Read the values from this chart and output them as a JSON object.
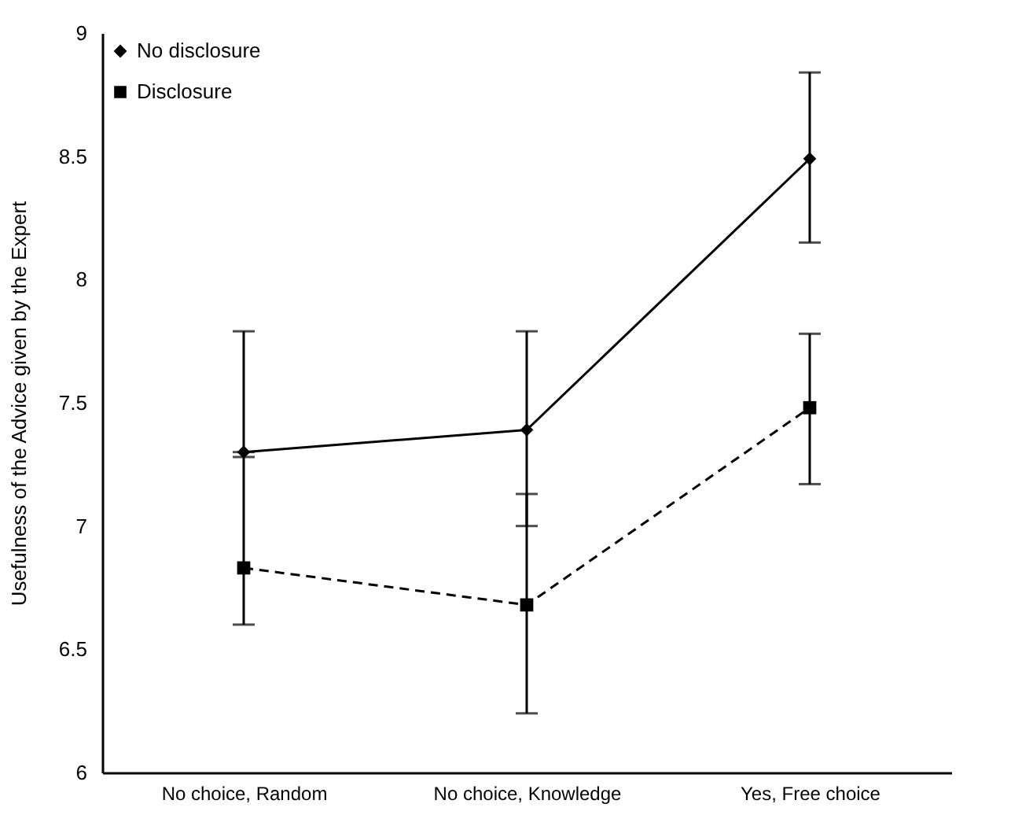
{
  "chart_data": {
    "type": "line",
    "ylabel": "Usefulness of the Advice given by the Expert",
    "categories": [
      "No choice, Random",
      "No choice, Knowledge",
      "Yes, Free choice"
    ],
    "ylim": [
      6,
      9
    ],
    "yticks": [
      {
        "value": 6,
        "label": "6"
      },
      6.5,
      {
        "value": 7,
        "label": "7"
      },
      7.5,
      {
        "value": 8,
        "label": "8"
      },
      8.5,
      {
        "value": 9,
        "label": "9"
      }
    ],
    "grid": false,
    "legend": "top left",
    "series": [
      {
        "name": "No disclosure",
        "color": "#000000",
        "marker": "diamond",
        "line_style": "solid",
        "values": [
          7.3,
          7.39,
          8.49
        ],
        "errors": [
          [
            7.3,
            7.79
          ],
          [
            7.0,
            7.79
          ],
          [
            8.15,
            8.84
          ]
        ]
      },
      {
        "name": "Disclosure",
        "color": "#000000",
        "marker": "square",
        "line_style": "dashed",
        "values": [
          6.83,
          6.68,
          7.48
        ],
        "errors": [
          [
            6.6,
            7.28
          ],
          [
            6.24,
            7.13
          ],
          [
            7.17,
            7.78
          ]
        ]
      }
    ]
  }
}
